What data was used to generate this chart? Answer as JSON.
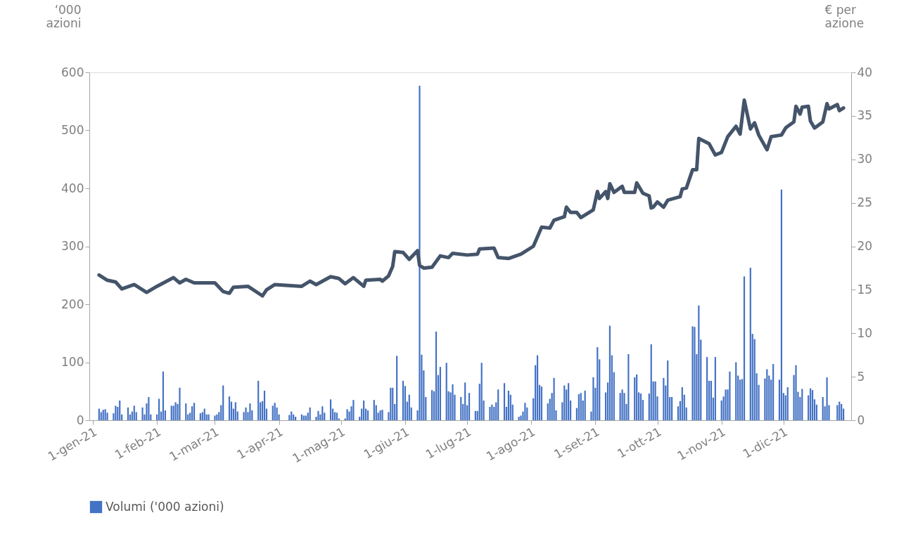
{
  "chart_data": {
    "type": "bar",
    "ylabel": "‘000 azioni",
    "y2label": "€ per azione",
    "legend": "bottom",
    "grid": false,
    "xlim": [
      "2021-01-01",
      "2022-01-01"
    ],
    "xticks": [
      {
        "value": "2021-01-01",
        "label": "1-gen-21"
      },
      {
        "value": "2021-02-01",
        "label": "1-feb-21"
      },
      {
        "value": "2021-03-01",
        "label": "1-mar-21"
      },
      {
        "value": "2021-04-01",
        "label": "1-apr-21"
      },
      {
        "value": "2021-05-01",
        "label": "1-mag-21"
      },
      {
        "value": "2021-06-01",
        "label": "1-giu-21"
      },
      {
        "value": "2021-07-01",
        "label": "1-lug-21"
      },
      {
        "value": "2021-08-01",
        "label": "1-ago-21"
      },
      {
        "value": "2021-09-01",
        "label": "1-set-21"
      },
      {
        "value": "2021-10-01",
        "label": "1-ott-21"
      },
      {
        "value": "2021-11-01",
        "label": "1-nov-21"
      },
      {
        "value": "2021-12-01",
        "label": "1-dic-21"
      }
    ],
    "ylim": [
      0,
      600
    ],
    "yticks": [
      0,
      100,
      200,
      300,
      400,
      500,
      600
    ],
    "y2lim": [
      0,
      40
    ],
    "y2ticks": [
      0,
      5,
      10,
      15,
      20,
      25,
      30,
      35,
      40
    ],
    "series": [
      {
        "name": "Volumi ('000 azioni)",
        "color": "#4472c4",
        "x": [
          "2021-01-04",
          "2021-01-05",
          "2021-01-06",
          "2021-01-07",
          "2021-01-08",
          "2021-01-11",
          "2021-01-12",
          "2021-01-13",
          "2021-01-14",
          "2021-01-15",
          "2021-01-18",
          "2021-01-19",
          "2021-01-20",
          "2021-01-21",
          "2021-01-22",
          "2021-01-25",
          "2021-01-26",
          "2021-01-27",
          "2021-01-28",
          "2021-01-29",
          "2021-02-01",
          "2021-02-02",
          "2021-02-03",
          "2021-02-04",
          "2021-02-05",
          "2021-02-08",
          "2021-02-09",
          "2021-02-10",
          "2021-02-11",
          "2021-02-12",
          "2021-02-15",
          "2021-02-16",
          "2021-02-17",
          "2021-02-18",
          "2021-02-19",
          "2021-02-22",
          "2021-02-23",
          "2021-02-24",
          "2021-02-25",
          "2021-02-26",
          "2021-03-01",
          "2021-03-02",
          "2021-03-03",
          "2021-03-04",
          "2021-03-05",
          "2021-03-08",
          "2021-03-09",
          "2021-03-10",
          "2021-03-11",
          "2021-03-12",
          "2021-03-15",
          "2021-03-16",
          "2021-03-17",
          "2021-03-18",
          "2021-03-19",
          "2021-03-22",
          "2021-03-23",
          "2021-03-24",
          "2021-03-25",
          "2021-03-26",
          "2021-03-29",
          "2021-03-30",
          "2021-03-31",
          "2021-04-01",
          "2021-04-06",
          "2021-04-07",
          "2021-04-08",
          "2021-04-09",
          "2021-04-12",
          "2021-04-13",
          "2021-04-14",
          "2021-04-15",
          "2021-04-16",
          "2021-04-19",
          "2021-04-20",
          "2021-04-21",
          "2021-04-22",
          "2021-04-23",
          "2021-04-26",
          "2021-04-27",
          "2021-04-28",
          "2021-04-29",
          "2021-04-30",
          "2021-05-03",
          "2021-05-04",
          "2021-05-05",
          "2021-05-06",
          "2021-05-07",
          "2021-05-10",
          "2021-05-11",
          "2021-05-12",
          "2021-05-13",
          "2021-05-14",
          "2021-05-17",
          "2021-05-18",
          "2021-05-19",
          "2021-05-20",
          "2021-05-21",
          "2021-05-24",
          "2021-05-25",
          "2021-05-26",
          "2021-05-27",
          "2021-05-28",
          "2021-05-31",
          "2021-06-01",
          "2021-06-02",
          "2021-06-03",
          "2021-06-04",
          "2021-06-07",
          "2021-06-08",
          "2021-06-09",
          "2021-06-10",
          "2021-06-11",
          "2021-06-14",
          "2021-06-15",
          "2021-06-16",
          "2021-06-17",
          "2021-06-18",
          "2021-06-21",
          "2021-06-22",
          "2021-06-23",
          "2021-06-24",
          "2021-06-25",
          "2021-06-28",
          "2021-06-29",
          "2021-06-30",
          "2021-07-01",
          "2021-07-02",
          "2021-07-05",
          "2021-07-06",
          "2021-07-07",
          "2021-07-08",
          "2021-07-09",
          "2021-07-12",
          "2021-07-13",
          "2021-07-14",
          "2021-07-15",
          "2021-07-16",
          "2021-07-19",
          "2021-07-20",
          "2021-07-21",
          "2021-07-22",
          "2021-07-23",
          "2021-07-26",
          "2021-07-27",
          "2021-07-28",
          "2021-07-29",
          "2021-07-30",
          "2021-08-02",
          "2021-08-03",
          "2021-08-04",
          "2021-08-05",
          "2021-08-06",
          "2021-08-09",
          "2021-08-10",
          "2021-08-11",
          "2021-08-12",
          "2021-08-13",
          "2021-08-16",
          "2021-08-17",
          "2021-08-18",
          "2021-08-19",
          "2021-08-20",
          "2021-08-23",
          "2021-08-24",
          "2021-08-25",
          "2021-08-26",
          "2021-08-27",
          "2021-08-30",
          "2021-08-31",
          "2021-09-01",
          "2021-09-02",
          "2021-09-03",
          "2021-09-06",
          "2021-09-07",
          "2021-09-08",
          "2021-09-09",
          "2021-09-10",
          "2021-09-13",
          "2021-09-14",
          "2021-09-15",
          "2021-09-16",
          "2021-09-17",
          "2021-09-20",
          "2021-09-21",
          "2021-09-22",
          "2021-09-23",
          "2021-09-24",
          "2021-09-27",
          "2021-09-28",
          "2021-09-29",
          "2021-09-30",
          "2021-10-01",
          "2021-10-04",
          "2021-10-05",
          "2021-10-06",
          "2021-10-07",
          "2021-10-08",
          "2021-10-11",
          "2021-10-12",
          "2021-10-13",
          "2021-10-14",
          "2021-10-15",
          "2021-10-18",
          "2021-10-19",
          "2021-10-20",
          "2021-10-21",
          "2021-10-22",
          "2021-10-25",
          "2021-10-26",
          "2021-10-27",
          "2021-10-28",
          "2021-10-29",
          "2021-11-01",
          "2021-11-02",
          "2021-11-03",
          "2021-11-04",
          "2021-11-05",
          "2021-11-08",
          "2021-11-09",
          "2021-11-10",
          "2021-11-11",
          "2021-11-12",
          "2021-11-15",
          "2021-11-16",
          "2021-11-17",
          "2021-11-18",
          "2021-11-19",
          "2021-11-22",
          "2021-11-23",
          "2021-11-24",
          "2021-11-25",
          "2021-11-26",
          "2021-11-29",
          "2021-11-30",
          "2021-12-01",
          "2021-12-02",
          "2021-12-03",
          "2021-12-06",
          "2021-12-07",
          "2021-12-08",
          "2021-12-09",
          "2021-12-10",
          "2021-12-13",
          "2021-12-14",
          "2021-12-15",
          "2021-12-16",
          "2021-12-17",
          "2021-12-20",
          "2021-12-21",
          "2021-12-22",
          "2021-12-23",
          "2021-12-27",
          "2021-12-28",
          "2021-12-29",
          "2021-12-30"
        ],
        "values": [
          20,
          14,
          18,
          19,
          13,
          12,
          25,
          23,
          34,
          10,
          22,
          10,
          15,
          25,
          14,
          22,
          10,
          29,
          40,
          10,
          10,
          37,
          15,
          84,
          17,
          25,
          25,
          31,
          28,
          56,
          29,
          10,
          13,
          24,
          30,
          12,
          14,
          20,
          10,
          10,
          8,
          10,
          14,
          26,
          60,
          41,
          32,
          20,
          31,
          15,
          14,
          22,
          14,
          29,
          17,
          68,
          31,
          33,
          51,
          20,
          25,
          30,
          22,
          10,
          9,
          15,
          10,
          6,
          10,
          8,
          8,
          13,
          22,
          6,
          16,
          10,
          24,
          13,
          36,
          20,
          14,
          13,
          3,
          3,
          19,
          15,
          24,
          35,
          6,
          20,
          34,
          20,
          17,
          35,
          26,
          13,
          17,
          18,
          14,
          56,
          56,
          28,
          111,
          68,
          59,
          32,
          44,
          22,
          17,
          577,
          113,
          86,
          40,
          52,
          50,
          153,
          78,
          92,
          99,
          50,
          48,
          62,
          44,
          40,
          28,
          65,
          26,
          47,
          16,
          16,
          63,
          99,
          34,
          23,
          27,
          23,
          31,
          53,
          64,
          23,
          51,
          44,
          27,
          6,
          8,
          15,
          30,
          22,
          38,
          95,
          112,
          61,
          58,
          29,
          37,
          47,
          73,
          17,
          31,
          60,
          53,
          64,
          34,
          21,
          45,
          47,
          34,
          51,
          15,
          74,
          56,
          126,
          105,
          48,
          65,
          163,
          112,
          83,
          47,
          53,
          47,
          28,
          114,
          74,
          79,
          48,
          46,
          35,
          46,
          131,
          67,
          67,
          41,
          73,
          60,
          103,
          40,
          40,
          24,
          33,
          57,
          44,
          22,
          162,
          161,
          114,
          198,
          139,
          109,
          68,
          68,
          39,
          109,
          34,
          41,
          53,
          53,
          84,
          100,
          77,
          70,
          71,
          248,
          263,
          149,
          140,
          81,
          61,
          72,
          88,
          77,
          70,
          97,
          70,
          398,
          47,
          43,
          57,
          78,
          95,
          49,
          40,
          54,
          43,
          55,
          52,
          36,
          27,
          40,
          24,
          74,
          26,
          26,
          32,
          28,
          20
        ]
      },
      {
        "type": "line",
        "axis": "y2",
        "color": "#44546a",
        "x": [
          "2021-01-04",
          "2021-01-08",
          "2021-01-12",
          "2021-01-15",
          "2021-01-21",
          "2021-01-27",
          "2021-02-01",
          "2021-02-09",
          "2021-02-12",
          "2021-02-15",
          "2021-02-19",
          "2021-02-24",
          "2021-03-01",
          "2021-03-05",
          "2021-03-08",
          "2021-03-10",
          "2021-03-17",
          "2021-03-24",
          "2021-03-26",
          "2021-03-30",
          "2021-04-12",
          "2021-04-16",
          "2021-04-19",
          "2021-04-26",
          "2021-04-30",
          "2021-05-03",
          "2021-05-07",
          "2021-05-12",
          "2021-05-13",
          "2021-05-20",
          "2021-05-21",
          "2021-05-24",
          "2021-05-26",
          "2021-05-27",
          "2021-05-31",
          "2021-06-03",
          "2021-06-07",
          "2021-06-08",
          "2021-06-10",
          "2021-06-14",
          "2021-06-18",
          "2021-06-22",
          "2021-06-24",
          "2021-07-01",
          "2021-07-06",
          "2021-07-07",
          "2021-07-14",
          "2021-07-16",
          "2021-07-21",
          "2021-07-27",
          "2021-08-02",
          "2021-08-06",
          "2021-08-10",
          "2021-08-12",
          "2021-08-17",
          "2021-08-18",
          "2021-08-20",
          "2021-08-23",
          "2021-08-25",
          "2021-08-31",
          "2021-09-02",
          "2021-09-03",
          "2021-09-06",
          "2021-09-07",
          "2021-09-08",
          "2021-09-10",
          "2021-09-14",
          "2021-09-15",
          "2021-09-20",
          "2021-09-21",
          "2021-09-24",
          "2021-09-27",
          "2021-09-28",
          "2021-09-29",
          "2021-10-01",
          "2021-10-04",
          "2021-10-06",
          "2021-10-12",
          "2021-10-13",
          "2021-10-15",
          "2021-10-18",
          "2021-10-20",
          "2021-10-21",
          "2021-10-26",
          "2021-10-29",
          "2021-11-01",
          "2021-11-04",
          "2021-11-08",
          "2021-11-10",
          "2021-11-12",
          "2021-11-15",
          "2021-11-17",
          "2021-11-19",
          "2021-11-23",
          "2021-11-25",
          "2021-11-30",
          "2021-12-02",
          "2021-12-03",
          "2021-12-06",
          "2021-12-07",
          "2021-12-09",
          "2021-12-10",
          "2021-12-13",
          "2021-12-14",
          "2021-12-16",
          "2021-12-20",
          "2021-12-22",
          "2021-12-23",
          "2021-12-27",
          "2021-12-28",
          "2021-12-30"
        ],
        "values": [
          16.7,
          16.1,
          15.9,
          15.1,
          15.6,
          14.7,
          15.4,
          16.4,
          15.8,
          16.2,
          15.8,
          15.8,
          15.8,
          14.8,
          14.6,
          15.3,
          15.4,
          14.3,
          15.0,
          15.6,
          15.4,
          16.0,
          15.6,
          16.5,
          16.3,
          15.7,
          16.4,
          15.4,
          16.1,
          16.2,
          16.0,
          16.6,
          17.7,
          19.4,
          19.3,
          18.5,
          19.5,
          17.8,
          17.5,
          17.6,
          18.9,
          18.7,
          19.2,
          19.0,
          19.1,
          19.7,
          19.8,
          18.7,
          18.6,
          19.1,
          20.0,
          22.2,
          22.1,
          23.0,
          23.4,
          24.5,
          23.9,
          23.9,
          23.3,
          24.2,
          26.3,
          25.5,
          26.3,
          25.5,
          27.2,
          26.2,
          26.9,
          26.2,
          26.2,
          27.3,
          26.1,
          25.8,
          24.4,
          24.5,
          25.1,
          24.5,
          25.3,
          25.7,
          26.6,
          26.7,
          28.8,
          28.8,
          32.4,
          31.8,
          30.5,
          30.8,
          32.6,
          33.8,
          32.9,
          36.8,
          33.5,
          34.2,
          32.8,
          31.1,
          32.6,
          32.8,
          33.6,
          33.8,
          34.3,
          36.1,
          35.2,
          36.0,
          36.1,
          34.4,
          33.6,
          34.3,
          36.4,
          35.8,
          36.3,
          35.6,
          35.9
        ]
      }
    ]
  }
}
